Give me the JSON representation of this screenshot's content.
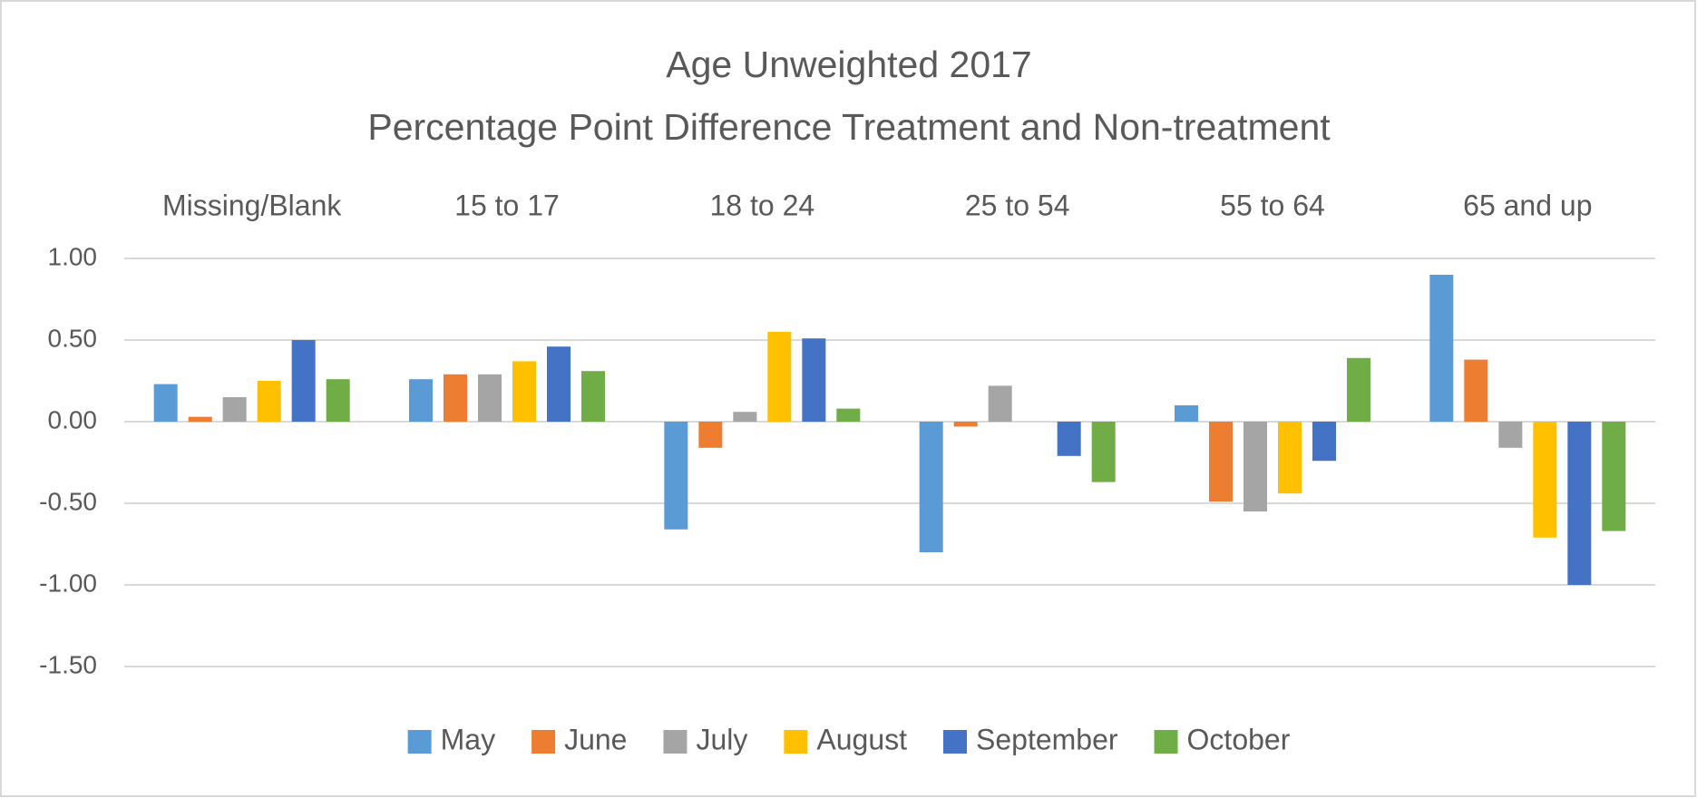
{
  "chart_data": {
    "type": "bar",
    "title": "Age Unweighted 2017",
    "subtitle": "Percentage Point Difference Treatment and Non-treatment",
    "categories": [
      "Missing/Blank",
      "15 to 17",
      "18 to 24",
      "25 to 54",
      "55 to 64",
      "65 and up"
    ],
    "series": [
      {
        "name": "May",
        "color": "#5b9bd5",
        "values": [
          0.23,
          0.26,
          -0.66,
          -0.8,
          0.1,
          0.9
        ]
      },
      {
        "name": "June",
        "color": "#ed7d31",
        "values": [
          0.03,
          0.29,
          -0.16,
          -0.03,
          -0.49,
          0.38
        ]
      },
      {
        "name": "July",
        "color": "#a5a5a5",
        "values": [
          0.15,
          0.29,
          0.06,
          0.22,
          -0.55,
          -0.16
        ]
      },
      {
        "name": "August",
        "color": "#ffc000",
        "values": [
          0.25,
          0.37,
          0.55,
          0,
          -0.44,
          -0.71
        ]
      },
      {
        "name": "September",
        "color": "#4472c4",
        "values": [
          0.5,
          0.46,
          0.51,
          -0.21,
          -0.24,
          -1.0
        ]
      },
      {
        "name": "October",
        "color": "#70ad47",
        "values": [
          0.26,
          0.31,
          0.08,
          -0.37,
          0.39,
          -0.67
        ]
      }
    ],
    "ylim": [
      -1.5,
      1
    ],
    "yticks": [
      {
        "value": 1,
        "label": "1.00"
      },
      {
        "value": 0.5,
        "label": "0.50"
      },
      {
        "value": 0,
        "label": "0.00"
      },
      {
        "value": -0.5,
        "label": "-0.50"
      },
      {
        "value": -1,
        "label": "-1.00"
      },
      {
        "value": -1.5,
        "label": "-1.50"
      }
    ],
    "grid": true,
    "legend": "bottom"
  }
}
